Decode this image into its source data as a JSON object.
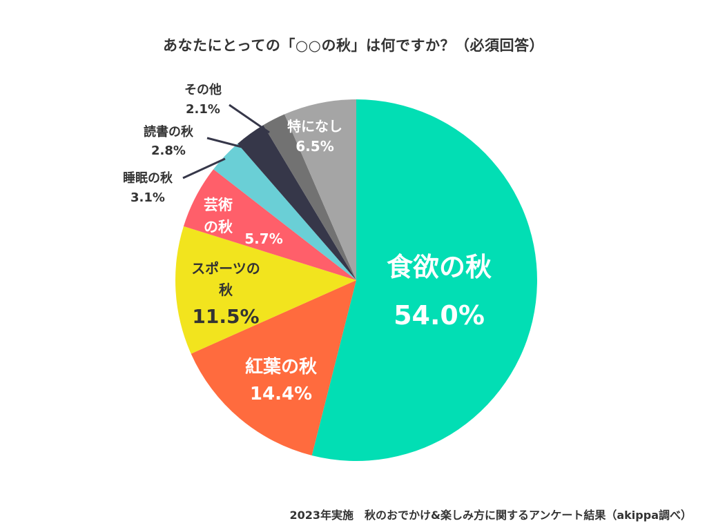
{
  "chart_data": {
    "type": "pie",
    "title": "あなたにとっての「○○の秋」は何ですか？（必須回答）",
    "unit": "%",
    "categories": [
      "食欲の秋",
      "紅葉の秋",
      "スポーツの秋",
      "芸術の秋",
      "睡眠の秋",
      "読書の秋",
      "その他",
      "特になし"
    ],
    "values": [
      54.0,
      14.4,
      11.5,
      5.7,
      3.1,
      2.8,
      2.1,
      6.5
    ],
    "value_labels": [
      "54.0%",
      "14.4%",
      "11.5%",
      "5.7%",
      "3.1%",
      "2.8%",
      "2.1%",
      "6.5%"
    ],
    "colors": [
      "#02DEB4",
      "#FF6B3E",
      "#F2E41E",
      "#FF5F6A",
      "#6ACFD6",
      "#363749",
      "#727272",
      "#A5A5A5"
    ],
    "start_angle": "12 o'clock",
    "direction": "clockwise"
  },
  "footer": {
    "source": "2023年実施　秋のおでかけ&楽しみ方に関するアンケート結果（akippa調べ）"
  }
}
